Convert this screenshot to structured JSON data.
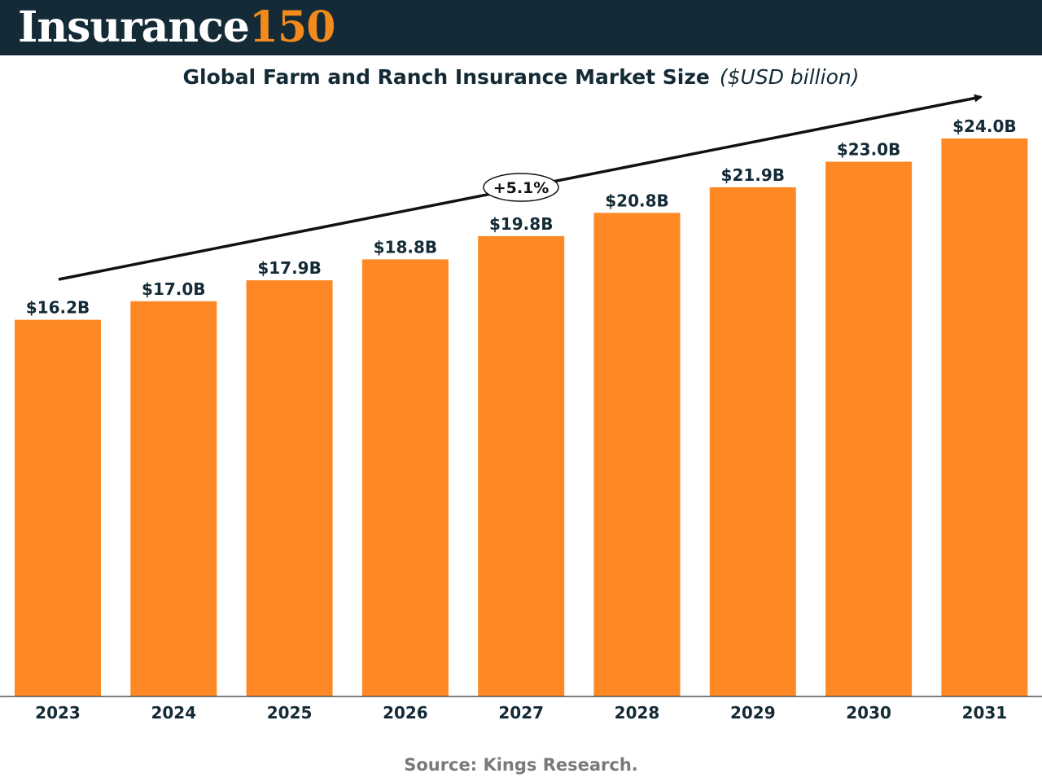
{
  "brand": {
    "word": "Insurance",
    "number": "150"
  },
  "colors": {
    "header_bg": "#142b37",
    "bar": "#fd8824",
    "brand_accent": "#f28a1e",
    "text_dark": "#142b37",
    "source_text": "#7a7a7a"
  },
  "chart_data": {
    "type": "bar",
    "title": "Global Farm and Ranch Insurance Market Size",
    "unit": "($USD billion)",
    "categories": [
      "2023",
      "2024",
      "2025",
      "2026",
      "2027",
      "2028",
      "2029",
      "2030",
      "2031"
    ],
    "values": [
      16.2,
      17.0,
      17.9,
      18.8,
      19.8,
      20.8,
      21.9,
      23.0,
      24.0
    ],
    "value_labels": [
      "$16.2B",
      "$17.0B",
      "$17.9B",
      "$18.8B",
      "$19.8B",
      "$20.8B",
      "$21.9B",
      "$23.0B",
      "$24.0B"
    ],
    "annotation": "+5.1%",
    "ylim": [
      0,
      24.0
    ],
    "grid": false,
    "legend": "none"
  },
  "source": "Source: Kings Research."
}
